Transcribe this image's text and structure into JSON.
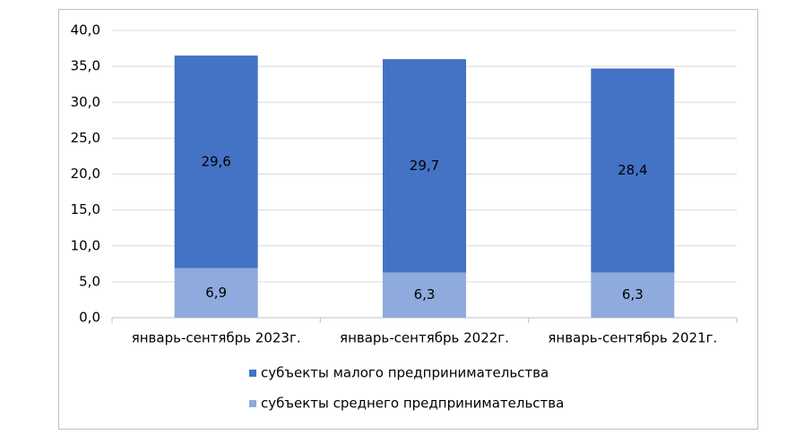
{
  "chart_data": {
    "type": "bar",
    "stacked": true,
    "categories": [
      "январь-сентябрь 2023г.",
      "январь-сентябрь 2022г.",
      "январь-сентябрь 2021г."
    ],
    "series": [
      {
        "name": "субъекты малого предпринимательства",
        "color": "#4472c4",
        "values": [
          29.6,
          29.7,
          28.4
        ],
        "value_labels": [
          "29,6",
          "29,7",
          "28,4"
        ]
      },
      {
        "name": "субъекты среднего предпринимательства",
        "color": "#8faadc",
        "values": [
          6.9,
          6.3,
          6.3
        ],
        "value_labels": [
          "6,9",
          "6,3",
          "6,3"
        ]
      }
    ],
    "ylim": [
      0,
      40
    ],
    "yticks": [
      {
        "value": 0,
        "label": "0,0"
      },
      {
        "value": 5,
        "label": "5,0"
      },
      {
        "value": 10,
        "label": "10,0"
      },
      {
        "value": 15,
        "label": "15,0"
      },
      {
        "value": 20,
        "label": "20,0"
      },
      {
        "value": 25,
        "label": "25,0"
      },
      {
        "value": 30,
        "label": "30,0"
      },
      {
        "value": 35,
        "label": "35,0"
      },
      {
        "value": 40,
        "label": "40,0"
      }
    ],
    "grid": true,
    "legend": "bottom"
  }
}
